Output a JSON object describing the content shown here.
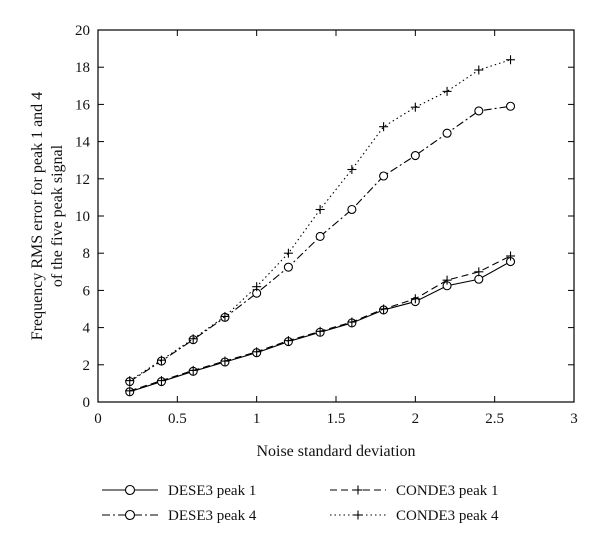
{
  "chart_data": {
    "type": "line",
    "xlabel": "Noise standard deviation",
    "ylabel_lines": [
      "Frequency RMS error for peak 1 and 4",
      "of the five peak signal"
    ],
    "xlim": [
      0,
      3
    ],
    "ylim": [
      0,
      20
    ],
    "xticks": [
      0,
      0.5,
      1,
      1.5,
      2,
      2.5,
      3
    ],
    "xtick_labels": [
      "0",
      "0.5",
      "1",
      "1.5",
      "2",
      "2.5",
      "3"
    ],
    "yticks": [
      0,
      2,
      4,
      6,
      8,
      10,
      12,
      14,
      16,
      18,
      20
    ],
    "ytick_labels": [
      "0",
      "2",
      "4",
      "6",
      "8",
      "10",
      "12",
      "14",
      "16",
      "18",
      "20"
    ],
    "grid": false,
    "legend_placement": "below",
    "x": [
      0.2,
      0.4,
      0.6,
      0.8,
      1.0,
      1.2,
      1.4,
      1.6,
      1.8,
      2.0,
      2.2,
      2.4,
      2.6
    ],
    "series": [
      {
        "name": "DESE3 peak 1",
        "line_style": "solid",
        "marker": "circle",
        "values": [
          0.55,
          1.1,
          1.65,
          2.15,
          2.65,
          3.25,
          3.75,
          4.25,
          4.95,
          5.4,
          6.25,
          6.6,
          7.55
        ]
      },
      {
        "name": "DESE3 peak 4",
        "line_style": "dashdot",
        "marker": "circle",
        "values": [
          1.1,
          2.2,
          3.35,
          4.55,
          5.85,
          7.25,
          8.9,
          10.35,
          12.15,
          13.25,
          14.45,
          15.65,
          15.9
        ]
      },
      {
        "name": "CONDE3 peak 1",
        "line_style": "dashed",
        "marker": "plus",
        "values": [
          0.6,
          1.15,
          1.7,
          2.2,
          2.7,
          3.3,
          3.8,
          4.3,
          5.0,
          5.55,
          6.55,
          7.0,
          7.85
        ]
      },
      {
        "name": "CONDE3 peak 4",
        "line_style": "dotted",
        "marker": "plus",
        "values": [
          1.15,
          2.25,
          3.4,
          4.6,
          6.2,
          8.0,
          10.35,
          12.5,
          14.8,
          15.85,
          16.7,
          17.85,
          18.4
        ]
      }
    ],
    "colors": {
      "line": "#000000",
      "background": "#ffffff"
    }
  }
}
